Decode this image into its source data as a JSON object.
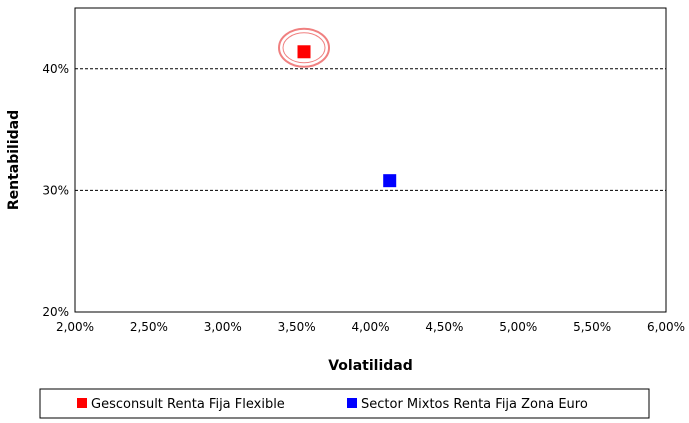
{
  "chart_data": {
    "type": "scatter",
    "title": "",
    "xlabel": "Volatilidad",
    "ylabel": "Rentabilidad",
    "xlim": [
      0.02,
      0.06
    ],
    "ylim": [
      0.2,
      0.45
    ],
    "x_ticks": [
      {
        "value": 0.02,
        "label": "2,00%"
      },
      {
        "value": 0.025,
        "label": "2,50%"
      },
      {
        "value": 0.03,
        "label": "3,00%"
      },
      {
        "value": 0.035,
        "label": "3,50%"
      },
      {
        "value": 0.04,
        "label": "4,00%"
      },
      {
        "value": 0.045,
        "label": "4,50%"
      },
      {
        "value": 0.05,
        "label": "5,00%"
      },
      {
        "value": 0.055,
        "label": "5,50%"
      },
      {
        "value": 0.06,
        "label": "6,00%"
      }
    ],
    "y_ticks": [
      {
        "value": 0.2,
        "label": "20%"
      },
      {
        "value": 0.3,
        "label": "30%"
      },
      {
        "value": 0.4,
        "label": "40%"
      }
    ],
    "grid": "horizontal dashed at 30% and 40%",
    "legend_position": "bottom",
    "series": [
      {
        "name": "Gesconsult Renta Fija Flexible",
        "color": "#ff0000",
        "marker": "square",
        "highlighted": true,
        "x": [
          0.0355
        ],
        "y": [
          0.414
        ]
      },
      {
        "name": "Sector Mixtos Renta Fija Zona Euro",
        "color": "#0000ff",
        "marker": "square",
        "highlighted": false,
        "x": [
          0.0413
        ],
        "y": [
          0.308
        ]
      }
    ],
    "highlight_color": "#f08080"
  }
}
